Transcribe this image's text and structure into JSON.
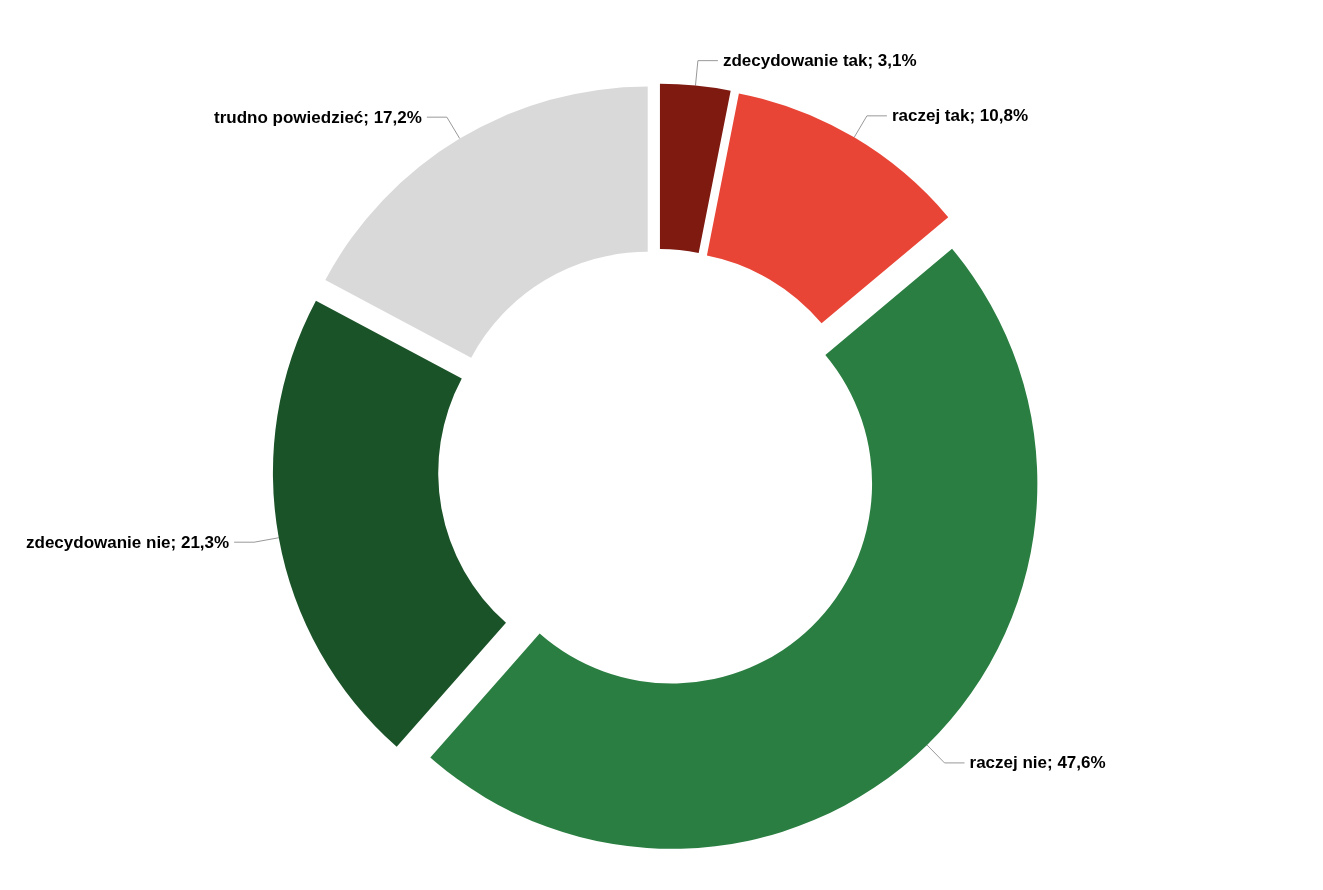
{
  "chart_data": {
    "type": "donut",
    "categories": [
      "zdecydowanie tak",
      "raczej tak",
      "raczej nie",
      "zdecydowanie nie",
      "trudno powiedzieć"
    ],
    "values": [
      3.1,
      10.8,
      47.6,
      21.3,
      17.2
    ],
    "value_labels": [
      "3,1%",
      "10,8%",
      "47,6%",
      "21,3%",
      "17,2%"
    ],
    "colors": [
      "#7f1a11",
      "#e94536",
      "#2a7e41",
      "#1b5329",
      "#d9d9d9"
    ],
    "legend": false
  }
}
